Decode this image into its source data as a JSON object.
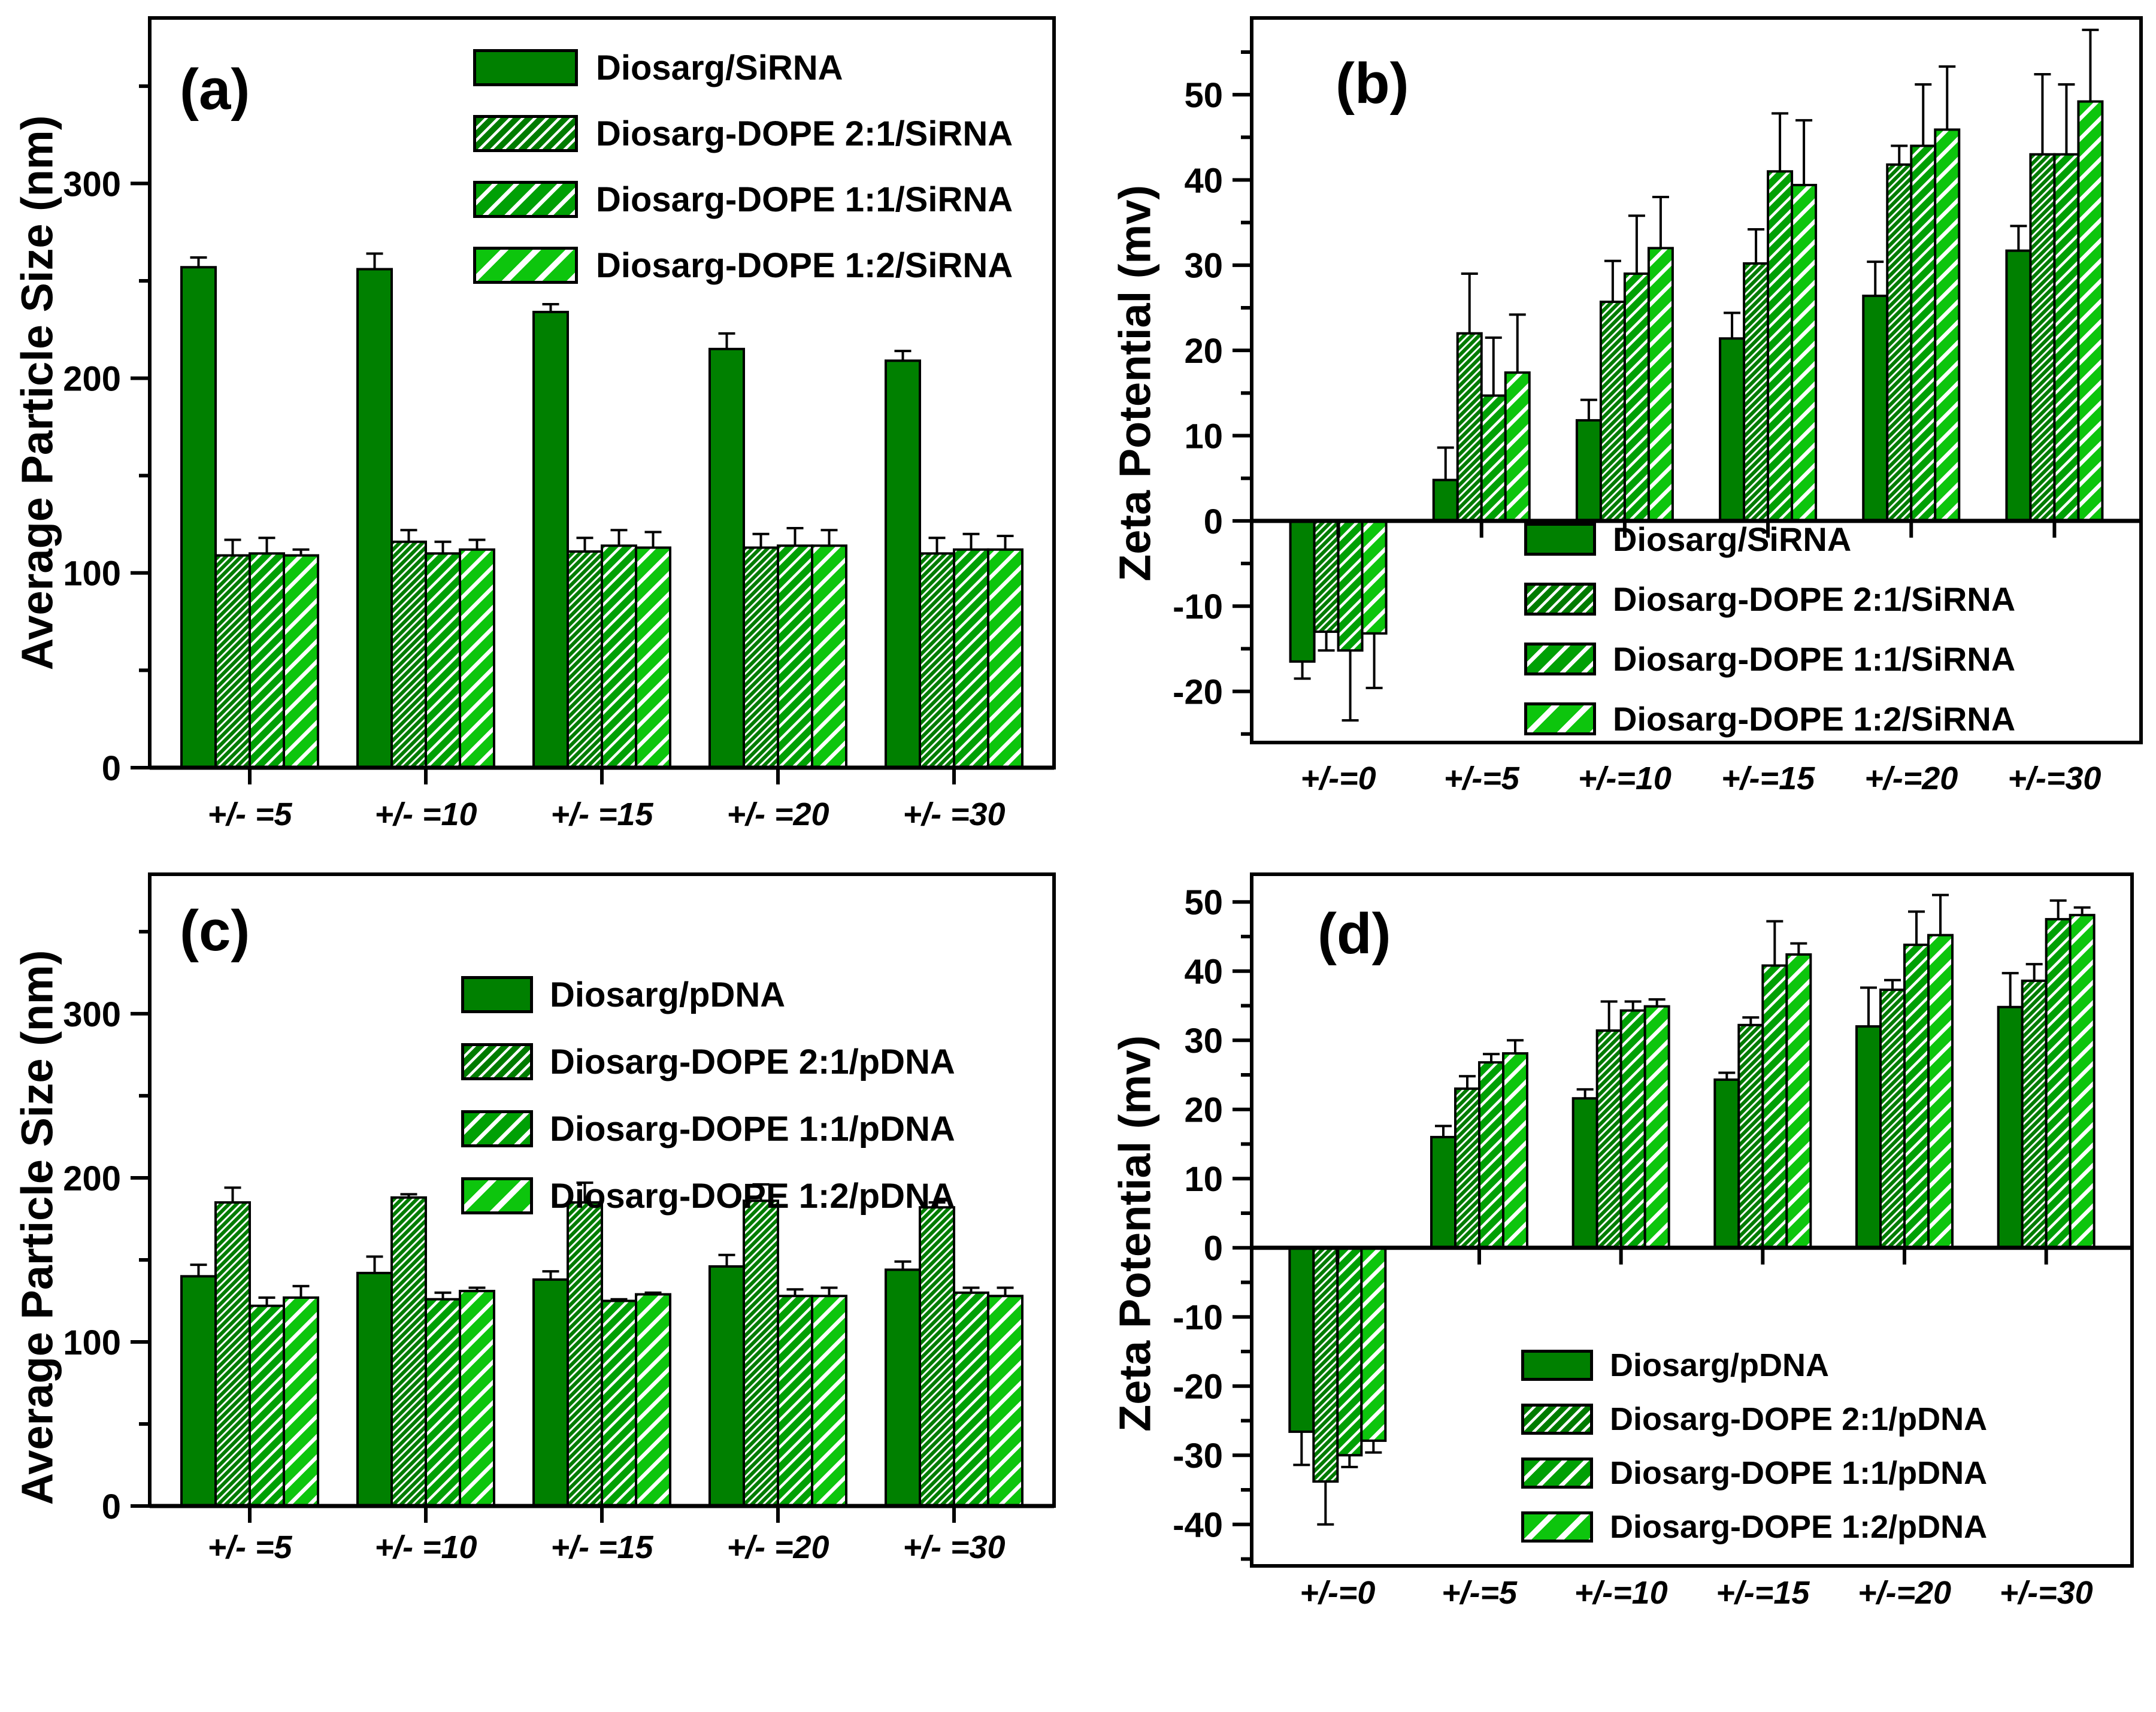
{
  "figure": {
    "background": "#ffffff",
    "text_color": "#000000"
  },
  "chart_data": [
    {
      "panel_label": "(a)",
      "type": "bar",
      "title": "",
      "xlabel": "",
      "ylabel": "Average Particle Size (nm)",
      "ylim": [
        0,
        385
      ],
      "yticks": [
        0,
        100,
        200,
        300
      ],
      "minor_step": 50,
      "grid": false,
      "legend_position": "top-right",
      "categories": [
        "+/- =5",
        "+/- =10",
        "+/- =15",
        "+/- =20",
        "+/- =30"
      ],
      "series": [
        {
          "name": "Diosarg/SiRNA",
          "fill": "#008000",
          "hatch": null,
          "values": [
            257,
            256,
            234,
            215,
            209
          ],
          "errors": [
            5,
            8,
            4,
            8,
            5
          ]
        },
        {
          "name": "Diosarg-DOPE 2:1/SiRNA",
          "fill": "#007C00",
          "hatch": {
            "period": 9,
            "stripe": 3
          },
          "values": [
            109,
            116,
            111,
            113,
            110
          ],
          "errors": [
            8,
            6,
            7,
            7,
            8
          ]
        },
        {
          "name": "Diosarg-DOPE 1:1/SiRNA",
          "fill": "#00A005",
          "hatch": {
            "period": 16,
            "stripe": 4.5
          },
          "values": [
            110,
            110,
            114,
            114,
            112
          ],
          "errors": [
            8,
            6,
            8,
            9,
            8
          ]
        },
        {
          "name": "Diosarg-DOPE 1:2/SiRNA",
          "fill": "#0DC50D",
          "hatch": {
            "period": 24,
            "stripe": 6.5
          },
          "values": [
            109,
            112,
            113,
            114,
            112
          ],
          "errors": [
            3,
            5,
            8,
            8,
            7
          ]
        }
      ]
    },
    {
      "panel_label": "(b)",
      "type": "bar",
      "title": "",
      "xlabel": "",
      "ylabel": "Zeta Potential (mv)",
      "ylim": [
        -26,
        59
      ],
      "yticks": [
        -20,
        -10,
        0,
        10,
        20,
        30,
        40,
        50
      ],
      "minor_step": 5,
      "grid": false,
      "legend_position": "bottom-right",
      "categories": [
        "+/-=0",
        "+/-=5",
        "+/-=10",
        "+/-=15",
        "+/-=20",
        "+/-=30"
      ],
      "series": [
        {
          "name": "Diosarg/SiRNA",
          "fill": "#008000",
          "hatch": null,
          "values": [
            -16.5,
            4.8,
            11.8,
            21.4,
            26.4,
            31.7
          ],
          "errors": [
            2,
            3.8,
            2.4,
            3,
            4,
            2.9
          ]
        },
        {
          "name": "Diosarg-DOPE 2:1/SiRNA",
          "fill": "#007C00",
          "hatch": {
            "period": 9,
            "stripe": 3
          },
          "values": [
            -13,
            22,
            25.7,
            30.2,
            41.8,
            43
          ],
          "errors": [
            2.2,
            7,
            4.8,
            4,
            2.2,
            9.4
          ]
        },
        {
          "name": "Diosarg-DOPE 1:1/SiRNA",
          "fill": "#00A005",
          "hatch": {
            "period": 16,
            "stripe": 4.5
          },
          "values": [
            -15.2,
            14.7,
            29,
            41,
            44,
            43
          ],
          "errors": [
            8.2,
            6.8,
            6.8,
            6.8,
            7.2,
            8.2
          ]
        },
        {
          "name": "Diosarg-DOPE 1:2/SiRNA",
          "fill": "#0DC50D",
          "hatch": {
            "period": 24,
            "stripe": 6.5
          },
          "values": [
            -13.2,
            17.4,
            32,
            39.4,
            45.9,
            49.2
          ],
          "errors": [
            6.4,
            6.8,
            6,
            7.6,
            7.4,
            8.4
          ]
        }
      ]
    },
    {
      "panel_label": "(c)",
      "type": "bar",
      "title": "",
      "xlabel": "",
      "ylabel": "Average Particle Size (nm)",
      "ylim": [
        0,
        385
      ],
      "yticks": [
        0,
        100,
        200,
        300
      ],
      "minor_step": 50,
      "grid": false,
      "legend_position": "top-right",
      "categories": [
        "+/- =5",
        "+/- =10",
        "+/- =15",
        "+/- =20",
        "+/- =30"
      ],
      "series": [
        {
          "name": "Diosarg/pDNA",
          "fill": "#008000",
          "hatch": null,
          "values": [
            140,
            142,
            138,
            146,
            144
          ],
          "errors": [
            7,
            10,
            5,
            7,
            5
          ]
        },
        {
          "name": "Diosarg-DOPE 2:1/pDNA",
          "fill": "#007C00",
          "hatch": {
            "period": 9,
            "stripe": 3
          },
          "values": [
            185,
            188,
            185,
            186,
            182
          ],
          "errors": [
            9,
            2,
            12,
            10,
            3
          ]
        },
        {
          "name": "Diosarg-DOPE 1:1/pDNA",
          "fill": "#00A005",
          "hatch": {
            "period": 16,
            "stripe": 4.5
          },
          "values": [
            122,
            126,
            125,
            128,
            130
          ],
          "errors": [
            5,
            4,
            1,
            4,
            3
          ]
        },
        {
          "name": "Diosarg-DOPE 1:2/pDNA",
          "fill": "#0DC50D",
          "hatch": {
            "period": 24,
            "stripe": 6.5
          },
          "values": [
            127,
            131,
            129,
            128,
            128
          ],
          "errors": [
            7,
            2,
            1,
            5,
            5
          ]
        }
      ]
    },
    {
      "panel_label": "(d)",
      "type": "bar",
      "title": "",
      "xlabel": "",
      "ylabel": "Zeta Potential (mv)",
      "ylim": [
        -46,
        54
      ],
      "yticks": [
        -40,
        -30,
        -20,
        -10,
        0,
        10,
        20,
        30,
        40,
        50
      ],
      "minor_step": 5,
      "grid": false,
      "legend_position": "bottom-right",
      "categories": [
        "+/-=0",
        "+/-=5",
        "+/-=10",
        "+/-=15",
        "+/-=20",
        "+/-=30"
      ],
      "series": [
        {
          "name": "Diosarg/pDNA",
          "fill": "#008000",
          "hatch": null,
          "values": [
            -26.6,
            16,
            21.6,
            24.3,
            32,
            34.8
          ],
          "errors": [
            4.8,
            1.6,
            1.3,
            1,
            5.6,
            4.9
          ]
        },
        {
          "name": "Diosarg-DOPE 2:1/pDNA",
          "fill": "#007C00",
          "hatch": {
            "period": 9,
            "stripe": 3
          },
          "values": [
            -33.8,
            23,
            31.4,
            32.2,
            37.3,
            38.6
          ],
          "errors": [
            6.2,
            1.8,
            4.2,
            1.1,
            1.4,
            2.4
          ]
        },
        {
          "name": "Diosarg-DOPE 1:1/pDNA",
          "fill": "#00A005",
          "hatch": {
            "period": 16,
            "stripe": 4.5
          },
          "values": [
            -30,
            26.8,
            34.3,
            40.8,
            43.8,
            47.5
          ],
          "errors": [
            1.7,
            1.2,
            1.3,
            6.4,
            4.8,
            2.7
          ]
        },
        {
          "name": "Diosarg-DOPE 1:2/pDNA",
          "fill": "#0DC50D",
          "hatch": {
            "period": 24,
            "stripe": 6.5
          },
          "values": [
            -27.9,
            28.1,
            34.9,
            42.4,
            45.2,
            48.1
          ],
          "errors": [
            1.7,
            1.9,
            1,
            1.6,
            5.8,
            1.1
          ]
        }
      ]
    }
  ]
}
